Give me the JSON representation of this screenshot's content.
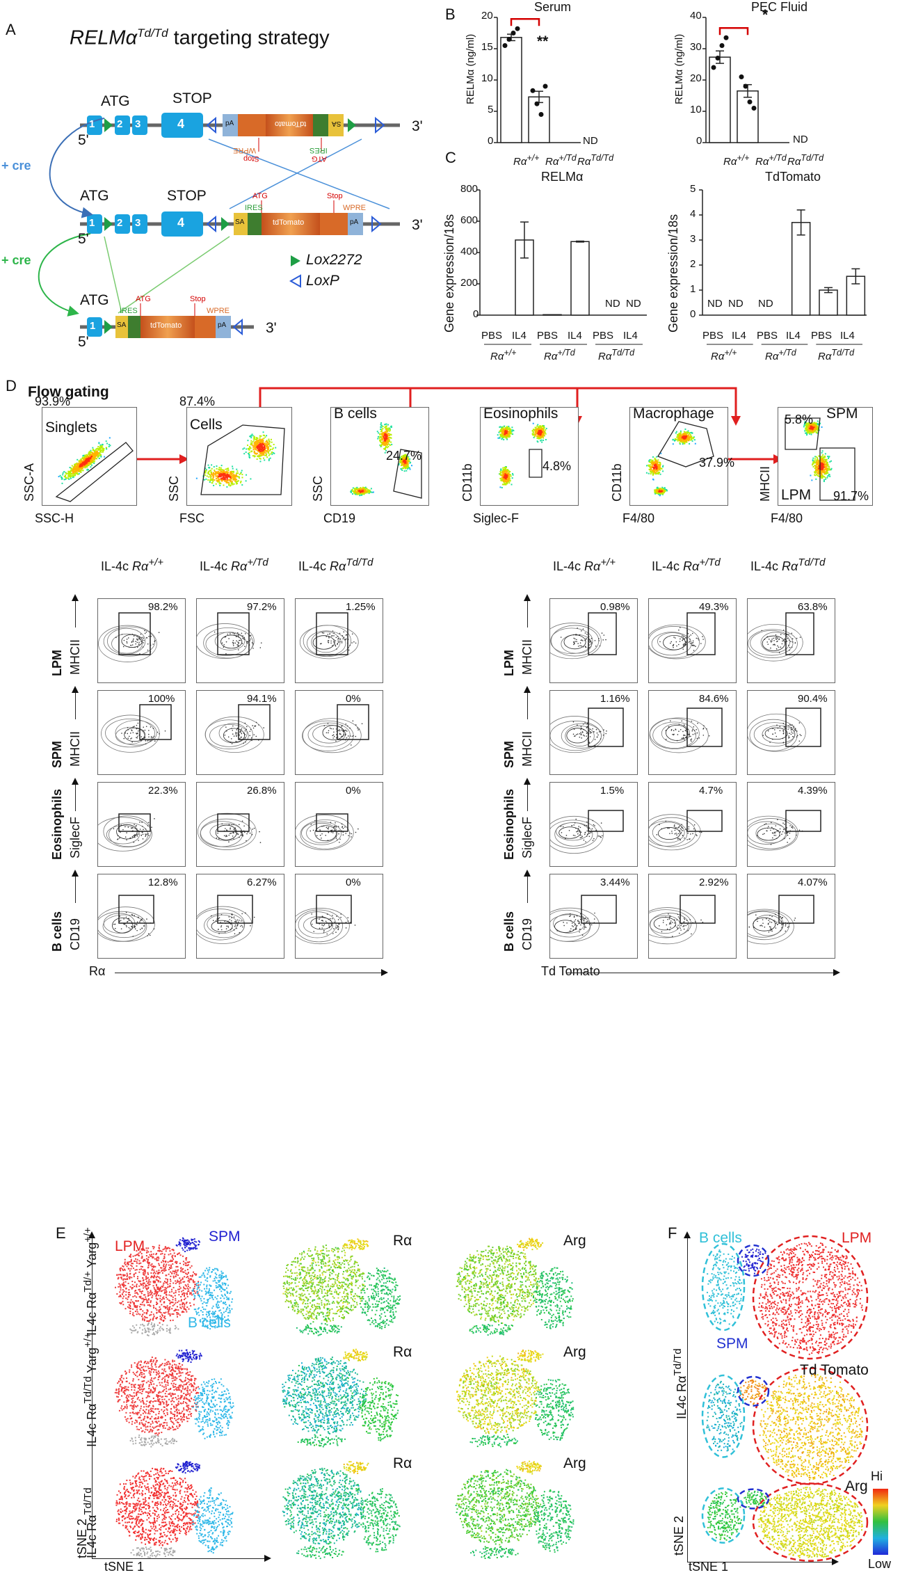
{
  "panel_labels": {
    "a": "A",
    "b": "B",
    "c": "C",
    "d": "D",
    "e": "E",
    "f": "F"
  },
  "panel_a": {
    "title_prefix": "RELMα",
    "title_sup": "Td/Td",
    "title_suffix": " targeting strategy",
    "atg": "ATG",
    "stop": "STOP",
    "exons": [
      "1",
      "2",
      "3",
      "4"
    ],
    "five_prime": "5'",
    "three_prime": "3'",
    "plus_cre": "+ cre",
    "cassette": {
      "pa": "pA",
      "wpre": "WPRE",
      "td": "tdTomato",
      "ires": "IRES",
      "sa": "SA",
      "atg_small": "ATG",
      "stop_small": "Stop"
    },
    "legend_lox2272": "Lox2272",
    "legend_loxp": "LoxP"
  },
  "panel_b": {
    "serum": {
      "title": "Serum",
      "ylabel": "RELMα (ng/ml)",
      "sig": "**",
      "nd": "ND",
      "yticks": [
        "0",
        "5",
        "10",
        "15",
        "20"
      ]
    },
    "pec": {
      "title": "PEC Fluid",
      "ylabel": "RELMα (ng/ml)",
      "sig": "*",
      "nd": "ND",
      "yticks": [
        "0",
        "10",
        "20",
        "30",
        "40"
      ]
    }
  },
  "genotypes": {
    "wt": "Rα",
    "wt_sup": "+/+",
    "het": "Rα",
    "het_sup": "+/Td",
    "ko": "Rα",
    "ko_sup": "Td/Td"
  },
  "panel_c": {
    "relm": {
      "title": "RELMα",
      "ylabel": "Gene expression/18s",
      "yticks": [
        "0",
        "200",
        "400",
        "600",
        "800"
      ]
    },
    "td": {
      "title": "TdTomato",
      "ylabel": "Gene expression/18s",
      "yticks": [
        "0",
        "1",
        "2",
        "3",
        "4",
        "5"
      ]
    },
    "pbs": "PBS",
    "il4": "IL4",
    "nd": "ND"
  },
  "chart_data": [
    {
      "type": "bar",
      "title": "Serum",
      "ylabel": "RELMα (ng/ml)",
      "categories": [
        "Rα+/+",
        "Rα+/Td",
        "RαTd/Td"
      ],
      "values": [
        16.8,
        7.3,
        0
      ],
      "ylim": [
        0,
        20
      ],
      "points": [
        [
          15.5,
          16.5,
          17.5,
          18.2
        ],
        [
          8.3,
          6.2,
          4.5,
          9.0
        ]
      ],
      "annotations": [
        "**",
        "ND"
      ]
    },
    {
      "type": "bar",
      "title": "PEC Fluid",
      "ylabel": "RELMα (ng/ml)",
      "categories": [
        "Rα+/+",
        "Rα+/Td",
        "RαTd/Td"
      ],
      "values": [
        27.3,
        16.5,
        0
      ],
      "ylim": [
        0,
        40
      ],
      "points": [
        [
          24,
          27,
          31,
          33.5
        ],
        [
          21,
          18,
          13,
          11
        ]
      ],
      "annotations": [
        "*",
        "ND"
      ]
    },
    {
      "type": "bar",
      "title": "RELMα",
      "ylabel": "Gene expression/18s",
      "categories": [
        "Rα+/+ PBS",
        "Rα+/+ IL4",
        "Rα+/Td PBS",
        "Rα+/Td IL4",
        "RαTd/Td PBS",
        "RαTd/Td IL4"
      ],
      "values": [
        0,
        480,
        3,
        470,
        0,
        0
      ],
      "errors": [
        0,
        115,
        0,
        3,
        0,
        0
      ],
      "ylim": [
        0,
        800
      ],
      "annotations": [
        "ND",
        "ND"
      ]
    },
    {
      "type": "bar",
      "title": "TdTomato",
      "ylabel": "Gene expression/18s",
      "categories": [
        "Rα+/+ PBS",
        "Rα+/+ IL4",
        "Rα+/Td PBS",
        "Rα+/Td IL4",
        "RαTd/Td PBS",
        "RαTd/Td IL4"
      ],
      "values": [
        0,
        0,
        0,
        3.7,
        1.0,
        1.55
      ],
      "errors": [
        0,
        0,
        0,
        0.5,
        0.1,
        0.3
      ],
      "ylim": [
        0,
        5
      ],
      "annotations": [
        "ND",
        "ND",
        "ND"
      ]
    }
  ],
  "panel_d": {
    "flow_gating": "Flow gating",
    "gates": [
      {
        "pct": "93.9%",
        "name": "Singlets",
        "y": "SSC-A",
        "x": "SSC-H"
      },
      {
        "pct": "87.4%",
        "name": "Cells",
        "y": "SSC",
        "x": "FSC"
      },
      {
        "pct": "24.7%",
        "name": "B cells",
        "y": "SSC",
        "x": "CD19"
      },
      {
        "pct": "4.8%",
        "name": "Eosinophils",
        "y": "CD11b",
        "x": "Siglec-F"
      },
      {
        "pct": "37.9%",
        "name": "Macrophage",
        "y": "CD11b",
        "x": "F4/80"
      },
      {
        "pct": "5.8%",
        "name": "SPM",
        "pct2": "91.7%",
        "name2": "LPM",
        "y": "MHCII",
        "x": "F4/80"
      }
    ],
    "col_prefix": "IL-4c",
    "rows": [
      {
        "name": "LPM",
        "marker": "MHCII"
      },
      {
        "name": "SPM",
        "marker": "MHCII"
      },
      {
        "name": "Eosinophils",
        "marker": "SiglecF"
      },
      {
        "name": "B cells",
        "marker": "CD19"
      }
    ],
    "left_pcts": [
      [
        "98.2%",
        "97.2%",
        "1.25%"
      ],
      [
        "100%",
        "94.1%",
        "0%"
      ],
      [
        "22.3%",
        "26.8%",
        "0%"
      ],
      [
        "12.8%",
        "6.27%",
        "0%"
      ]
    ],
    "right_pcts": [
      [
        "0.98%",
        "49.3%",
        "63.8%"
      ],
      [
        "1.16%",
        "84.6%",
        "90.4%"
      ],
      [
        "1.5%",
        "4.7%",
        "4.39%"
      ],
      [
        "3.44%",
        "2.92%",
        "4.07%"
      ]
    ],
    "left_x": "Rα",
    "right_x": "Td Tomato"
  },
  "panel_e": {
    "rows": [
      "IL4c Rα Td/+ Yarg +/+",
      "IL4c Rα Td/Td Yarg +/+",
      "IL4c Rα Td/Td"
    ],
    "row_labels": [
      {
        "a": "IL4c Rα",
        "b": "Td/+",
        "c": " Yarg",
        "d": "+/+"
      },
      {
        "a": "IL4c Rα",
        "b": "Td/Td",
        "c": " Yarg",
        "d": "+/+"
      },
      {
        "a": "IL4c Rα",
        "b": "Td/Td",
        "c": "",
        "d": ""
      }
    ],
    "lpm": "LPM",
    "spm": "SPM",
    "bcells": "B cells",
    "ra": "Rα",
    "arg": "Arg",
    "tsne1": "tSNE 1",
    "tsne2": "tSNE 2"
  },
  "panel_f": {
    "bcells": "B cells",
    "lpm": "LPM",
    "spm": "SPM",
    "td": "Td Tomato",
    "arg": "Arg",
    "ylabel_a": "IL4c Rα",
    "ylabel_b": "Td/Td",
    "hi": "Hi",
    "low": "Low",
    "tsne1": "tSNE 1",
    "tsne2": "tSNE 2"
  },
  "colors": {
    "red": "#e32222",
    "blue_cre": "#4a90d9",
    "green_cre": "#2db54a",
    "exon": "#1aa3e0",
    "lox_green": "#1e9e45",
    "loxp": "#2a5bd7",
    "sig_red": "#d40000"
  }
}
